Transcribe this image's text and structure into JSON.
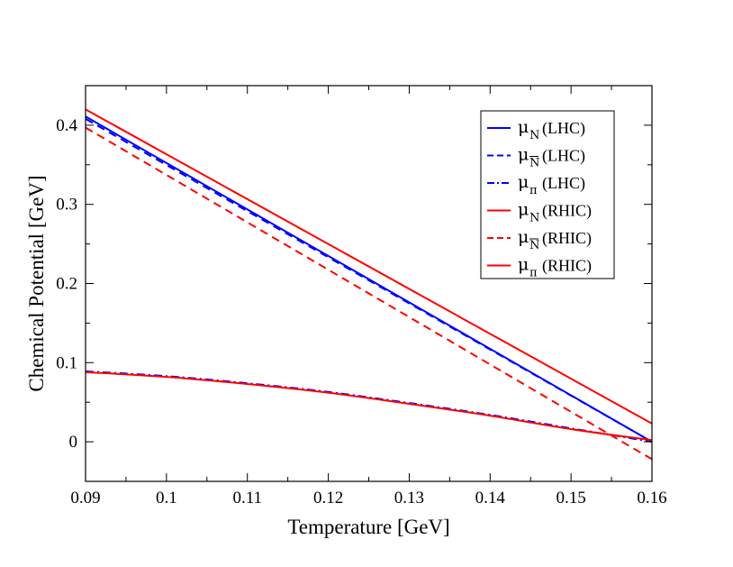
{
  "chart_data": {
    "type": "line",
    "title": "",
    "xlabel": "Temperature [GeV]",
    "ylabel": "Chemical Potential [GeV]",
    "xlim": [
      0.09,
      0.16
    ],
    "ylim": [
      -0.05,
      0.45
    ],
    "grid": false,
    "legend_position": "top-right",
    "xticks": [
      0.09,
      0.1,
      0.11,
      0.12,
      0.13,
      0.14,
      0.15,
      0.16
    ],
    "xtick_labels": [
      "0.09",
      "0.1",
      "0.11",
      "0.12",
      "0.13",
      "0.14",
      "0.15",
      "0.16"
    ],
    "yticks": [
      0,
      0.1,
      0.2,
      0.3,
      0.4
    ],
    "ytick_labels": [
      "0",
      "0.1",
      "0.2",
      "0.3",
      "0.4"
    ],
    "series": [
      {
        "name": "mu_N (LHC)",
        "symbol": "μ",
        "sub": "N",
        "bar": false,
        "tag": "(LHC)",
        "color": "#0000ff",
        "dash": "solid",
        "x": [
          0.09,
          0.16
        ],
        "y": [
          0.411,
          0.0
        ]
      },
      {
        "name": "mu_Nbar (LHC)",
        "symbol": "μ",
        "sub": "N",
        "bar": true,
        "tag": "(LHC)",
        "color": "#0000ff",
        "dash": "dashed",
        "x": [
          0.09,
          0.16
        ],
        "y": [
          0.408,
          0.0
        ]
      },
      {
        "name": "mu_pi (LHC)",
        "symbol": "μ",
        "sub": "π",
        "bar": false,
        "tag": "(LHC)",
        "color": "#0000ff",
        "dash": "dashdot",
        "x": [
          0.09,
          0.1,
          0.11,
          0.12,
          0.13,
          0.14,
          0.15,
          0.16
        ],
        "y": [
          0.089,
          0.083,
          0.074,
          0.063,
          0.049,
          0.034,
          0.017,
          0.0
        ]
      },
      {
        "name": "mu_N (RHIC)",
        "symbol": "μ",
        "sub": "N",
        "bar": false,
        "tag": "(RHIC)",
        "color": "#ff0000",
        "dash": "solid",
        "x": [
          0.09,
          0.16
        ],
        "y": [
          0.42,
          0.023
        ]
      },
      {
        "name": "mu_Nbar (RHIC)",
        "symbol": "μ",
        "sub": "N",
        "bar": true,
        "tag": "(RHIC)",
        "color": "#ff0000",
        "dash": "dashed",
        "x": [
          0.09,
          0.16
        ],
        "y": [
          0.397,
          -0.022
        ]
      },
      {
        "name": "mu_pi (RHIC)",
        "symbol": "μ",
        "sub": "π",
        "bar": false,
        "tag": "(RHIC)",
        "color": "#ff0000",
        "dash": "solid",
        "x": [
          0.09,
          0.1,
          0.11,
          0.12,
          0.13,
          0.14,
          0.15,
          0.16
        ],
        "y": [
          0.088,
          0.082,
          0.073,
          0.062,
          0.048,
          0.033,
          0.016,
          0.002
        ]
      }
    ]
  }
}
